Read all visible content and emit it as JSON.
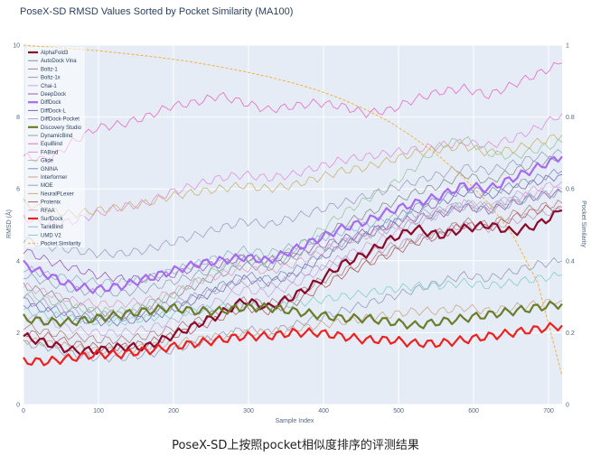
{
  "caption": "PoseX-SD上按照pocket相似度排序的评测结果",
  "chart_data": {
    "type": "line",
    "title": "PoseX-SD RMSD Values Sorted by Pocket Similarity (MA100)",
    "xlabel": "Sample Index",
    "ylabel": "RMSD (Å)",
    "y2label": "Pocket Similarity",
    "xlim": [
      0,
      718
    ],
    "ylim": [
      0,
      10
    ],
    "y2lim": [
      0,
      1
    ],
    "x_ticks": [
      "0",
      "100",
      "200",
      "300",
      "400",
      "500",
      "600",
      "700"
    ],
    "y_ticks": [
      "0",
      "2",
      "4",
      "6",
      "8",
      "10"
    ],
    "y2_ticks": [
      "0",
      "0.2",
      "0.4",
      "0.6",
      "0.8",
      "1"
    ],
    "grid": true,
    "legend_position": "top-left",
    "series": [
      {
        "name": "AlphaFold3",
        "color": "#8b0a2a",
        "width": 2.2,
        "dash": "",
        "axis": "y",
        "values": [
          1.9,
          1.7,
          1.5,
          1.5,
          1.6,
          1.6,
          1.9,
          2.2,
          2.5,
          2.9,
          2.7,
          3.0,
          3.4,
          3.9,
          4.2,
          4.6,
          4.9,
          4.7,
          4.9,
          5.0,
          4.8,
          5.0,
          5.4
        ]
      },
      {
        "name": "AutoDock Vina",
        "color": "#8c8c8c",
        "width": 0.8,
        "dash": "",
        "axis": "y",
        "values": [
          3.3,
          3.1,
          2.8,
          2.6,
          2.5,
          2.7,
          3.0,
          3.3,
          3.6,
          3.9,
          3.8,
          4.1,
          4.6,
          5.0,
          5.3,
          5.6,
          5.9,
          6.1,
          6.4,
          6.2,
          6.5,
          6.7,
          6.9
        ]
      },
      {
        "name": "Boltz-1",
        "color": "#b08080",
        "width": 0.8,
        "dash": "",
        "axis": "y",
        "values": [
          2.2,
          2.0,
          1.9,
          1.8,
          1.8,
          1.9,
          2.1,
          2.3,
          2.6,
          2.9,
          2.8,
          3.0,
          3.4,
          3.7,
          4.0,
          4.3,
          4.6,
          4.8,
          5.1,
          5.0,
          5.3,
          5.5,
          5.6
        ]
      },
      {
        "name": "Boltz-1x",
        "color": "#9a9ab8",
        "width": 0.8,
        "dash": "",
        "axis": "y",
        "values": [
          1.7,
          1.6,
          1.4,
          1.3,
          1.3,
          1.4,
          1.5,
          1.7,
          1.9,
          2.1,
          2.0,
          2.2,
          2.4,
          2.6,
          2.8,
          3.0,
          3.2,
          3.4,
          3.6,
          3.5,
          3.7,
          3.9,
          4.0
        ]
      },
      {
        "name": "Chai-1",
        "color": "#c9a8e0",
        "width": 0.8,
        "dash": "",
        "axis": "y",
        "values": [
          2.5,
          2.3,
          2.1,
          2.0,
          2.0,
          2.1,
          2.3,
          2.6,
          2.9,
          3.2,
          3.1,
          3.3,
          3.7,
          4.1,
          4.4,
          4.7,
          5.0,
          5.3,
          5.6,
          5.5,
          5.8,
          6.0,
          6.2
        ]
      },
      {
        "name": "DeepDock",
        "color": "#9b59b6",
        "width": 0.8,
        "dash": "",
        "axis": "y",
        "values": [
          4.3,
          4.0,
          3.8,
          3.6,
          3.5,
          3.5,
          3.6,
          3.8,
          3.9,
          4.1,
          4.0,
          4.2,
          4.4,
          4.6,
          4.8,
          5.0,
          5.2,
          5.3,
          5.5,
          5.4,
          5.6,
          5.8,
          5.9
        ]
      },
      {
        "name": "DiffDock",
        "color": "#a66bf0",
        "width": 2.2,
        "dash": "",
        "axis": "y",
        "values": [
          3.9,
          3.6,
          3.3,
          3.2,
          3.3,
          3.5,
          3.7,
          3.9,
          4.0,
          4.1,
          4.0,
          4.3,
          4.6,
          4.9,
          5.1,
          5.4,
          5.6,
          5.8,
          6.1,
          6.0,
          6.3,
          6.6,
          6.9
        ]
      },
      {
        "name": "DiffDock-L",
        "color": "#7a6ab0",
        "width": 0.8,
        "dash": "",
        "axis": "y",
        "values": [
          2.8,
          2.6,
          2.4,
          2.3,
          2.3,
          2.4,
          2.6,
          2.9,
          3.2,
          3.5,
          3.4,
          3.6,
          4.0,
          4.4,
          4.7,
          5.0,
          5.4,
          5.6,
          5.9,
          5.8,
          6.0,
          6.2,
          6.4
        ]
      },
      {
        "name": "DiffDock-Pocket",
        "color": "#b7a0c8",
        "width": 0.8,
        "dash": "",
        "axis": "y",
        "values": [
          3.0,
          2.8,
          2.6,
          2.5,
          2.5,
          2.6,
          2.8,
          3.0,
          3.2,
          3.4,
          3.3,
          3.5,
          3.8,
          4.0,
          4.2,
          4.4,
          4.6,
          4.8,
          5.0,
          4.9,
          5.1,
          5.3,
          5.4
        ]
      },
      {
        "name": "Discovery Studio",
        "color": "#6b7d2a",
        "width": 2.2,
        "dash": "",
        "axis": "y",
        "values": [
          2.4,
          2.3,
          2.3,
          2.4,
          2.5,
          2.6,
          2.7,
          2.6,
          2.6,
          2.7,
          2.7,
          2.6,
          2.5,
          2.4,
          2.4,
          2.3,
          2.2,
          2.3,
          2.4,
          2.5,
          2.6,
          2.7,
          2.8
        ]
      },
      {
        "name": "DynamicBind",
        "color": "#8fa3b8",
        "width": 0.8,
        "dash": "",
        "axis": "y",
        "values": [
          3.6,
          3.4,
          3.2,
          3.1,
          3.1,
          3.2,
          3.4,
          3.6,
          3.8,
          4.0,
          3.9,
          4.1,
          4.3,
          4.5,
          4.7,
          4.9,
          5.1,
          5.3,
          5.5,
          5.4,
          5.6,
          5.8,
          5.9
        ]
      },
      {
        "name": "EquiBind",
        "color": "#e868c8",
        "width": 0.8,
        "dash": "",
        "axis": "y",
        "values": [
          6.9,
          6.8,
          7.3,
          7.7,
          7.8,
          8.0,
          8.3,
          8.4,
          8.6,
          8.4,
          8.2,
          8.3,
          8.4,
          8.3,
          8.1,
          8.2,
          8.5,
          8.7,
          8.8,
          8.6,
          8.9,
          9.2,
          9.5
        ]
      },
      {
        "name": "FABind",
        "color": "#e090e0",
        "width": 0.8,
        "dash": "",
        "axis": "y",
        "values": [
          5.2,
          5.0,
          5.1,
          5.3,
          5.5,
          5.6,
          5.9,
          6.1,
          6.3,
          6.4,
          6.3,
          6.4,
          6.6,
          6.8,
          6.9,
          7.0,
          7.1,
          7.2,
          7.3,
          7.2,
          7.4,
          7.7,
          8.1
        ]
      },
      {
        "name": "Glide",
        "color": "#98c8a0",
        "width": 0.8,
        "dash": "",
        "axis": "y",
        "values": [
          3.1,
          2.9,
          2.7,
          2.6,
          2.6,
          2.8,
          3.0,
          3.4,
          3.8,
          4.1,
          4.0,
          4.3,
          4.8,
          5.3,
          5.7,
          6.1,
          6.6,
          7.2,
          7.4,
          7.0,
          6.9,
          7.1,
          7.3
        ]
      },
      {
        "name": "GNINA",
        "color": "#7e8fc0",
        "width": 0.8,
        "dash": "",
        "axis": "y",
        "values": [
          2.9,
          2.7,
          2.5,
          2.4,
          2.4,
          2.5,
          2.7,
          3.0,
          3.3,
          3.6,
          3.5,
          3.7,
          4.1,
          4.5,
          4.8,
          5.1,
          5.5,
          5.7,
          6.0,
          5.9,
          6.1,
          6.3,
          6.5
        ]
      },
      {
        "name": "Interformer",
        "color": "#c8a88c",
        "width": 0.8,
        "dash": "",
        "axis": "y",
        "values": [
          1.8,
          1.7,
          1.6,
          1.5,
          1.5,
          1.6,
          1.7,
          1.8,
          1.9,
          2.0,
          2.0,
          2.1,
          2.2,
          2.3,
          2.4,
          2.5,
          2.6,
          2.6,
          2.7,
          2.6,
          2.7,
          2.8,
          2.9
        ]
      },
      {
        "name": "MOE",
        "color": "#a0a0c0",
        "width": 0.8,
        "dash": "",
        "axis": "y",
        "values": [
          4.6,
          4.4,
          4.3,
          4.2,
          4.2,
          4.3,
          4.5,
          4.7,
          4.9,
          5.1,
          5.0,
          5.2,
          5.4,
          5.6,
          5.8,
          6.0,
          6.2,
          6.4,
          6.6,
          6.5,
          6.7,
          6.9,
          7.0
        ]
      },
      {
        "name": "NeuralPLexer",
        "color": "#c8b470",
        "width": 0.8,
        "dash": "",
        "axis": "y",
        "values": [
          5.6,
          5.4,
          5.3,
          5.4,
          5.5,
          5.6,
          5.8,
          5.9,
          6.0,
          6.1,
          6.0,
          6.1,
          6.3,
          6.5,
          6.6,
          6.8,
          7.0,
          7.1,
          7.2,
          7.0,
          7.1,
          7.3,
          7.5
        ]
      },
      {
        "name": "Protenix",
        "color": "#b06060",
        "width": 0.8,
        "dash": "",
        "axis": "y",
        "values": [
          2.0,
          1.9,
          1.7,
          1.6,
          1.6,
          1.7,
          1.9,
          2.1,
          2.4,
          2.7,
          2.6,
          2.8,
          3.2,
          3.6,
          3.9,
          4.2,
          4.5,
          4.7,
          5.0,
          4.9,
          5.2,
          5.4,
          5.5
        ]
      },
      {
        "name": "RFAA",
        "color": "#e0a0c8",
        "width": 0.8,
        "dash": "",
        "axis": "y",
        "values": [
          3.3,
          3.1,
          2.9,
          2.8,
          2.8,
          2.9,
          3.1,
          3.4,
          3.6,
          3.8,
          3.7,
          3.9,
          4.2,
          4.5,
          4.7,
          4.9,
          5.2,
          5.4,
          5.6,
          5.5,
          5.7,
          5.9,
          6.0
        ]
      },
      {
        "name": "SurfDock",
        "color": "#ee2020",
        "width": 2.2,
        "dash": "",
        "axis": "y",
        "values": [
          1.2,
          1.2,
          1.3,
          1.4,
          1.4,
          1.5,
          1.6,
          1.7,
          1.8,
          1.9,
          1.9,
          2.0,
          2.0,
          1.9,
          1.8,
          1.8,
          1.7,
          1.7,
          1.8,
          1.9,
          2.0,
          2.1,
          2.2
        ]
      },
      {
        "name": "TankBind",
        "color": "#90b8c8",
        "width": 0.8,
        "dash": "",
        "axis": "y",
        "values": [
          3.8,
          3.6,
          3.5,
          3.4,
          3.4,
          3.5,
          3.7,
          3.9,
          4.1,
          4.3,
          4.2,
          4.4,
          4.6,
          4.8,
          5.0,
          5.2,
          5.3,
          5.4,
          5.6,
          5.5,
          5.7,
          5.8,
          5.9
        ]
      },
      {
        "name": "UMD V2",
        "color": "#80d0c8",
        "width": 0.8,
        "dash": "",
        "axis": "y",
        "values": [
          2.6,
          2.5,
          2.4,
          2.3,
          2.3,
          2.4,
          2.5,
          2.6,
          2.7,
          2.8,
          2.7,
          2.8,
          2.9,
          3.0,
          3.1,
          3.2,
          3.3,
          3.3,
          3.4,
          3.3,
          3.4,
          3.5,
          3.6
        ]
      },
      {
        "name": "Pocket Similarity",
        "color": "#f5b040",
        "width": 1.0,
        "dash": "3,2",
        "axis": "y2",
        "values": [
          1.0,
          0.995,
          0.99,
          0.985,
          0.978,
          0.97,
          0.962,
          0.952,
          0.94,
          0.927,
          0.912,
          0.895,
          0.875,
          0.85,
          0.82,
          0.785,
          0.74,
          0.69,
          0.63,
          0.56,
          0.47,
          0.34,
          0.08
        ]
      }
    ]
  }
}
